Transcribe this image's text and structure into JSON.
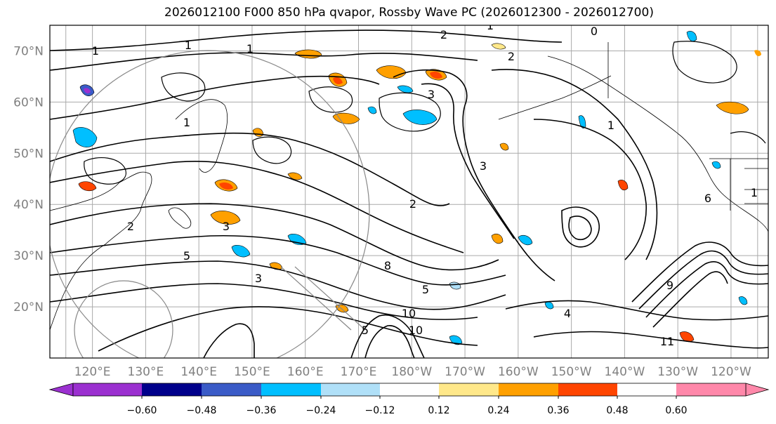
{
  "title": "2026012100 F000 850 hPa qvapor, Rossby Wave PC (2026012300 - 2026012700)",
  "map": {
    "lon_range_east": [
      112,
      247
    ],
    "lat_range": [
      10,
      75
    ],
    "lat_labels": [
      "20°N",
      "30°N",
      "40°N",
      "50°N",
      "60°N",
      "70°N"
    ],
    "lon_labels": [
      "120°E",
      "130°E",
      "140°E",
      "150°E",
      "160°E",
      "170°E",
      "180°W",
      "170°W",
      "160°W",
      "150°W",
      "140°W",
      "130°W",
      "120°W"
    ],
    "contour_labels": [
      "1",
      "2",
      "1",
      "0",
      "2",
      "1",
      "1",
      "3",
      "1",
      "3",
      "5",
      "2",
      "8",
      "3",
      "4",
      "5",
      "3",
      "10",
      "1",
      "10",
      "9",
      "1",
      "6",
      "11",
      "5",
      "2"
    ]
  },
  "colorbar": {
    "colors": [
      "#9b30d0",
      "#00008b",
      "#3a5bc7",
      "#00bfff",
      "#b0e0f8",
      "#ffffff",
      "#ffe88a",
      "#ffa000",
      "#ff4500",
      "#b22222",
      "#ff88aa"
    ],
    "tick_labels": [
      "−0.60",
      "−0.48",
      "−0.36",
      "−0.24",
      "−0.12",
      "0.12",
      "0.24",
      "0.36",
      "0.48",
      "0.60"
    ]
  },
  "palette": {
    "frame": "#000000",
    "grid": "#aaaaaa",
    "coast": "#000000",
    "label_gray": "#808080"
  }
}
